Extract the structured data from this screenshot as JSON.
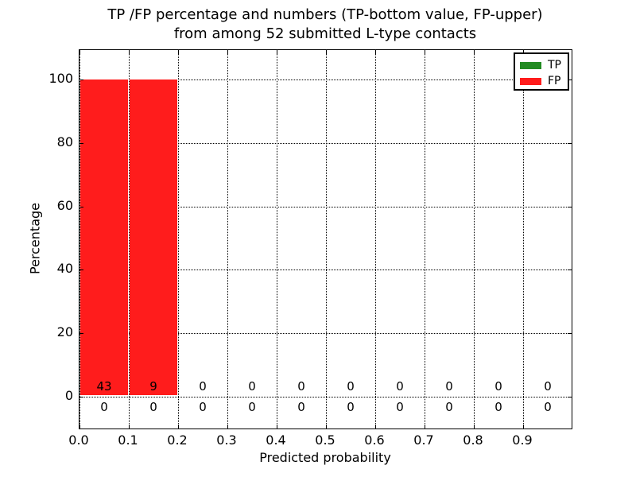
{
  "title": {
    "line1": "TP /FP percentage and numbers (TP-bottom value, FP-upper)",
    "line2": "from among 52 submitted L-type contacts"
  },
  "axes": {
    "ylabel": "Percentage",
    "xlabel": "Predicted probability",
    "ytick_labels": [
      "0",
      "20",
      "40",
      "60",
      "80",
      "100"
    ],
    "xtick_labels": [
      "0.0",
      "0.1",
      "0.2",
      "0.3",
      "0.4",
      "0.5",
      "0.6",
      "0.7",
      "0.8",
      "0.9"
    ]
  },
  "legend": {
    "items": [
      {
        "label": "TP",
        "color": "#228b22"
      },
      {
        "label": "FP",
        "color": "#ff1c1c"
      }
    ]
  },
  "colors": {
    "tp": "#228b22",
    "fp": "#ff1c1c",
    "grid": "#000000",
    "background": "#ffffff"
  },
  "chart_data": {
    "type": "bar",
    "stacked": true,
    "title": "TP /FP percentage and numbers (TP-bottom value, FP-upper) from among 52 submitted L-type contacts",
    "xlabel": "Predicted probability",
    "ylabel": "Percentage",
    "total_submitted_contacts": 52,
    "bin_width": 0.1,
    "categories": [
      "0.0-0.1",
      "0.1-0.2",
      "0.2-0.3",
      "0.3-0.4",
      "0.4-0.5",
      "0.5-0.6",
      "0.6-0.7",
      "0.7-0.8",
      "0.8-0.9",
      "0.9-1.0"
    ],
    "bin_starts": [
      0.0,
      0.1,
      0.2,
      0.3,
      0.4,
      0.5,
      0.6,
      0.7,
      0.8,
      0.9
    ],
    "series": [
      {
        "name": "TP",
        "color": "#228b22",
        "percent": [
          0,
          0,
          0,
          0,
          0,
          0,
          0,
          0,
          0,
          0
        ],
        "counts": [
          0,
          0,
          0,
          0,
          0,
          0,
          0,
          0,
          0,
          0
        ]
      },
      {
        "name": "FP",
        "color": "#ff1c1c",
        "percent": [
          100,
          100,
          0,
          0,
          0,
          0,
          0,
          0,
          0,
          0
        ],
        "counts": [
          43,
          9,
          0,
          0,
          0,
          0,
          0,
          0,
          0,
          0
        ]
      }
    ],
    "annotation_rows": {
      "upper_row_series": "FP",
      "lower_row_series": "TP"
    },
    "xlim": [
      0.0,
      1.0
    ],
    "ylim": [
      -10.5,
      109.5
    ],
    "yticks": [
      0,
      20,
      40,
      60,
      80,
      100
    ],
    "xticks": [
      0.0,
      0.1,
      0.2,
      0.3,
      0.4,
      0.5,
      0.6,
      0.7,
      0.8,
      0.9
    ],
    "grid": "dotted",
    "legend_position": "upper right"
  }
}
